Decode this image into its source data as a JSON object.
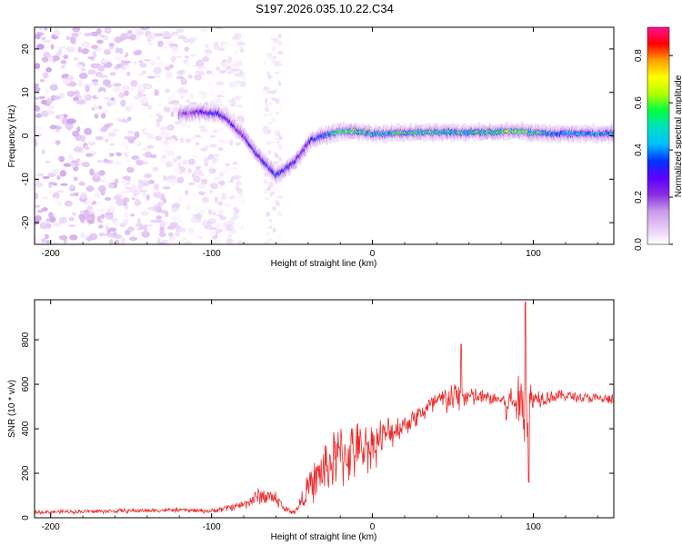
{
  "title": "S197.2026.035.10.22.C34",
  "chart_data": [
    {
      "type": "heatmap",
      "name": "spectrogram",
      "xlabel": "Height of straight line (km)",
      "ylabel": "Frequency (Hz)",
      "xlim": [
        -210,
        150
      ],
      "ylim": [
        -25,
        25
      ],
      "xticks": [
        -200,
        -100,
        0,
        100
      ],
      "yticks": [
        -20,
        -10,
        0,
        10,
        20
      ],
      "colorbar": {
        "label": "Normalized spectral amplitude",
        "range": [
          0.0,
          0.92
        ],
        "ticks": [
          0.0,
          0.2,
          0.4,
          0.6,
          0.8
        ],
        "colormap": [
          "#ffffff",
          "#e6c9f5",
          "#c89ae8",
          "#8a2be2",
          "#5a00ff",
          "#0033ff",
          "#00bfff",
          "#00e0c0",
          "#00ff40",
          "#b0ff00",
          "#ffff00",
          "#ffa000",
          "#ff0000",
          "#ff1090"
        ]
      },
      "ridge": {
        "x": [
          -120,
          -105,
          -95,
          -88,
          -80,
          -72,
          -65,
          -60,
          -55,
          -48,
          -42,
          -38,
          -30,
          -20,
          -10,
          0,
          10,
          30,
          50,
          70,
          90,
          110,
          130,
          150
        ],
        "y": [
          5,
          5.5,
          5,
          3,
          0,
          -4,
          -7,
          -9,
          -8,
          -6,
          -3,
          -1,
          0,
          1,
          1,
          0.5,
          0.5,
          0.8,
          0.8,
          0.8,
          1,
          0.5,
          0.5,
          0.5
        ],
        "peak_amplitude": [
          0.18,
          0.3,
          0.32,
          0.3,
          0.28,
          0.3,
          0.35,
          0.38,
          0.35,
          0.3,
          0.28,
          0.32,
          0.4,
          0.7,
          0.6,
          0.5,
          0.55,
          0.6,
          0.55,
          0.55,
          0.65,
          0.5,
          0.45,
          0.45
        ]
      },
      "noise_region": {
        "x_from": -210,
        "x_to": -100,
        "max_amplitude": 0.15
      }
    },
    {
      "type": "line",
      "name": "snr",
      "xlabel": "Height of straight line (km)",
      "ylabel": "SNR (10 * v/v)",
      "xlim": [
        -210,
        150
      ],
      "ylim": [
        0,
        980
      ],
      "xticks": [
        -200,
        -100,
        0,
        100
      ],
      "yticks": [
        0,
        200,
        400,
        600,
        800
      ],
      "color": "#ee2b2b",
      "envelope": {
        "x": [
          -210,
          -160,
          -120,
          -100,
          -80,
          -70,
          -60,
          -55,
          -48,
          -40,
          -30,
          -20,
          -10,
          0,
          10,
          20,
          30,
          40,
          50,
          60,
          70,
          80,
          90,
          95,
          100,
          110,
          120,
          130,
          140,
          150
        ],
        "mean": [
          25,
          30,
          35,
          30,
          60,
          100,
          90,
          40,
          25,
          130,
          220,
          280,
          300,
          330,
          380,
          420,
          470,
          520,
          540,
          545,
          540,
          530,
          520,
          500,
          540,
          545,
          550,
          540,
          535,
          530
        ],
        "spread": [
          10,
          12,
          12,
          12,
          25,
          50,
          45,
          20,
          15,
          80,
          150,
          180,
          150,
          130,
          90,
          60,
          60,
          70,
          90,
          60,
          40,
          40,
          120,
          250,
          60,
          40,
          30,
          30,
          30,
          30
        ]
      },
      "notable_points": [
        {
          "x": 55,
          "y": 780
        },
        {
          "x": 95,
          "y": 970
        },
        {
          "x": 97,
          "y": 160
        },
        {
          "x": 83,
          "y": 440
        }
      ]
    }
  ]
}
